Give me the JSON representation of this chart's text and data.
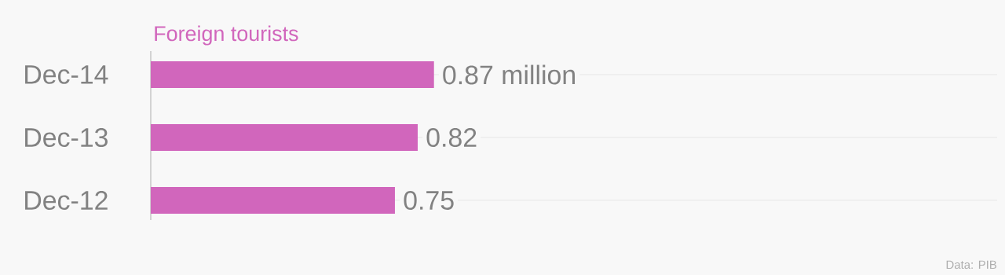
{
  "chart_data": {
    "type": "bar",
    "orientation": "horizontal",
    "title": "Foreign tourists",
    "categories": [
      "Dec-14",
      "Dec-13",
      "Dec-12"
    ],
    "values": [
      0.87,
      0.82,
      0.75
    ],
    "value_labels": [
      "0.87 million",
      "0.82",
      "0.75"
    ],
    "color": "#d166bc",
    "xlim": [
      0,
      2.6
    ],
    "grid": "y",
    "tick_labels": "y",
    "annotations": [
      "Data: PIB"
    ]
  }
}
